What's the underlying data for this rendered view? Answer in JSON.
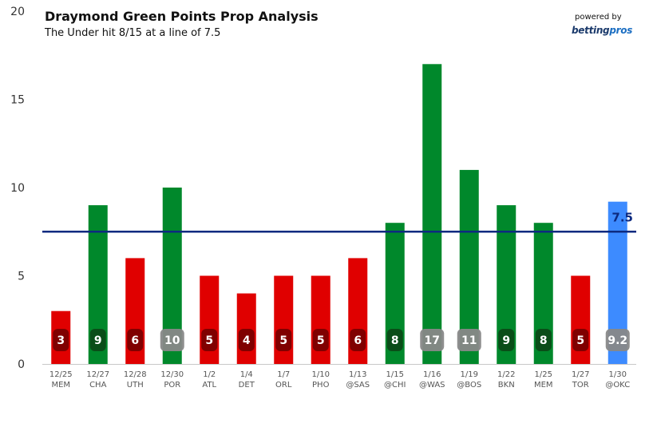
{
  "header": {
    "title": "Draymond Green Points Prop Analysis",
    "subtitle": "The Under hit 8/15 at a line of 7.5"
  },
  "brand": {
    "powered_by": "powered by",
    "logo_main": "betting",
    "logo_accent": "pros"
  },
  "colors": {
    "over": "#00882b",
    "under": "#e00000",
    "projection": "#3d8bff",
    "line": "#0d2a80",
    "label_box_over": "#0b4a17",
    "label_box_under": "#7a0000",
    "label_box_double": "#888888"
  },
  "chart_data": {
    "type": "bar",
    "title": "Draymond Green Points Prop Analysis",
    "subtitle": "The Under hit 8/15 at a line of 7.5",
    "ylim": [
      0,
      20
    ],
    "yticks": [
      0,
      5,
      10,
      15,
      20
    ],
    "grid": false,
    "line_value": 7.5,
    "line_label": "7.5",
    "categories": [
      {
        "date": "12/25",
        "opp": "MEM"
      },
      {
        "date": "12/27",
        "opp": "CHA"
      },
      {
        "date": "12/28",
        "opp": "UTH"
      },
      {
        "date": "12/30",
        "opp": "POR"
      },
      {
        "date": "1/2",
        "opp": "ATL"
      },
      {
        "date": "1/4",
        "opp": "DET"
      },
      {
        "date": "1/7",
        "opp": "ORL"
      },
      {
        "date": "1/10",
        "opp": "PHO"
      },
      {
        "date": "1/13",
        "opp": "@SAS"
      },
      {
        "date": "1/15",
        "opp": "@CHI"
      },
      {
        "date": "1/16",
        "opp": "@WAS"
      },
      {
        "date": "1/19",
        "opp": "@BOS"
      },
      {
        "date": "1/22",
        "opp": "BKN"
      },
      {
        "date": "1/25",
        "opp": "MEM"
      },
      {
        "date": "1/27",
        "opp": "TOR"
      },
      {
        "date": "1/30",
        "opp": "@OKC"
      }
    ],
    "values": [
      3,
      9,
      6,
      10,
      5,
      4,
      5,
      5,
      6,
      8,
      17,
      11,
      9,
      8,
      5,
      9.2
    ],
    "labels": [
      "3",
      "9",
      "6",
      "10",
      "5",
      "4",
      "5",
      "5",
      "6",
      "8",
      "17",
      "11",
      "9",
      "8",
      "5",
      "9.2"
    ],
    "results": [
      "under",
      "over",
      "under",
      "over",
      "under",
      "under",
      "under",
      "under",
      "under",
      "over",
      "over",
      "over",
      "over",
      "over",
      "under",
      "projection"
    ]
  }
}
